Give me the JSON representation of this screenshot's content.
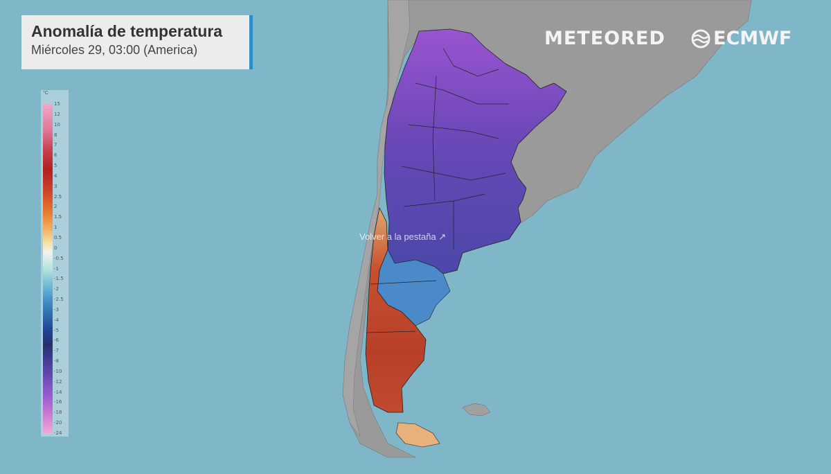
{
  "header": {
    "title": "Anomalía de temperatura",
    "subtitle": "Miércoles 29, 03:00 (America)"
  },
  "brands": {
    "meteored": "METEORED",
    "ecmwf": "ECMWF"
  },
  "legend": {
    "unit": "°C",
    "labels": [
      "15",
      "12",
      "10",
      "8",
      "7",
      "6",
      "5",
      "4",
      "3",
      "2.5",
      "2",
      "1.5",
      "1",
      "0.5",
      "0",
      "-0.5",
      "-1",
      "-1.5",
      "-2",
      "-2.5",
      "-3",
      "-4",
      "-5",
      "-6",
      "-7",
      "-8",
      "-10",
      "-12",
      "-14",
      "-16",
      "-18",
      "-20",
      "-24"
    ]
  },
  "overlay": {
    "return_tab": "Volver a la pestaña"
  },
  "colors": {
    "ocean": "#7fb7c9",
    "land": "#9a9a9a",
    "cold_anomaly": "#5a44a8",
    "warm_anomaly": "#c0462a",
    "title_accent": "#2b8cc8"
  },
  "icons": {
    "ecmwf_logo": "ecmwf-logo-icon",
    "return_tab": "external-link-icon"
  }
}
